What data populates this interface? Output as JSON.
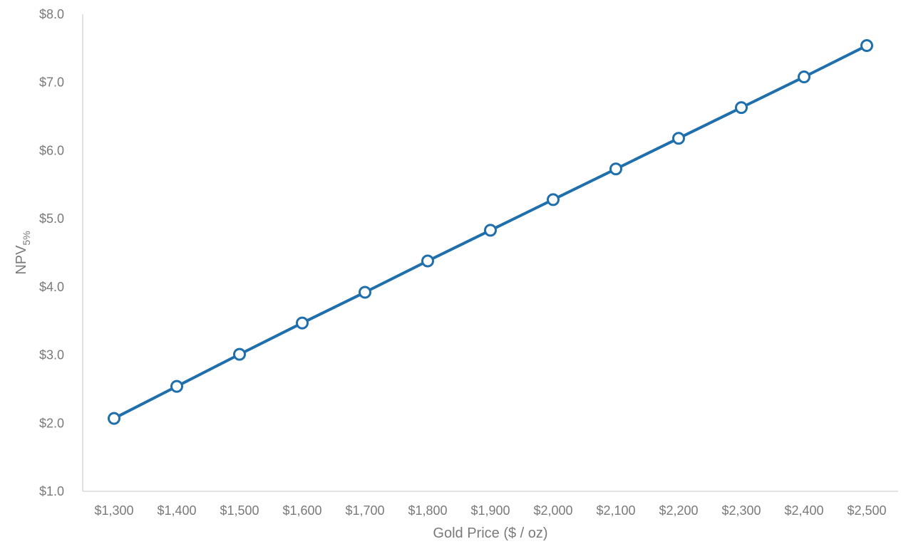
{
  "chart_data": {
    "type": "line",
    "xlabel": "Gold Price ($ / oz)",
    "ylabel": {
      "main": "NPV",
      "subscript": "5%"
    },
    "x_tick_labels": [
      "$1,300",
      "$1,400",
      "$1,500",
      "$1,600",
      "$1,700",
      "$1,800",
      "$1,900",
      "$2,000",
      "$2,100",
      "$2,200",
      "$2,300",
      "$2,400",
      "$2,500"
    ],
    "y_tick_labels": [
      "$1.0",
      "$2.0",
      "$3.0",
      "$4.0",
      "$5.0",
      "$6.0",
      "$7.0",
      "$8.0"
    ],
    "y_ticks": [
      1,
      2,
      3,
      4,
      5,
      6,
      7,
      8
    ],
    "ylim": [
      1,
      8
    ],
    "grid": false,
    "legend": "none",
    "series": [
      {
        "x": [
          1300,
          1400,
          1500,
          1600,
          1700,
          1800,
          1900,
          2000,
          2100,
          2200,
          2300,
          2400,
          2500
        ],
        "values": [
          2.07,
          2.54,
          3.01,
          3.47,
          3.92,
          4.38,
          4.83,
          5.28,
          5.73,
          6.18,
          6.63,
          7.08,
          7.54
        ],
        "color": "#1f6fac",
        "marker": "open-circle"
      }
    ]
  }
}
